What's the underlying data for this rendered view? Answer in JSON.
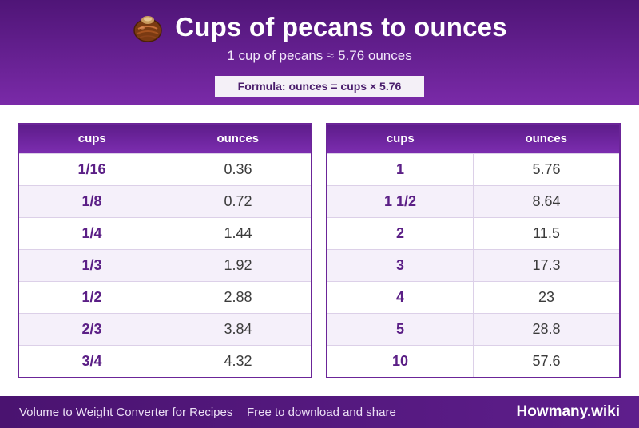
{
  "header": {
    "icon": "pecan-nut-icon",
    "title": "Cups of pecans to ounces",
    "subtitle": "1 cup of pecans ≈ 5.76 ounces",
    "formula": "Formula: ounces = cups × 5.76"
  },
  "tables": {
    "left": {
      "col1": "cups",
      "col2": "ounces",
      "rows": [
        [
          "1/16",
          "0.36"
        ],
        [
          "1/8",
          "0.72"
        ],
        [
          "1/4",
          "1.44"
        ],
        [
          "1/3",
          "1.92"
        ],
        [
          "1/2",
          "2.88"
        ],
        [
          "2/3",
          "3.84"
        ],
        [
          "3/4",
          "4.32"
        ]
      ]
    },
    "right": {
      "col1": "cups",
      "col2": "ounces",
      "rows": [
        [
          "1",
          "5.76"
        ],
        [
          "1 1/2",
          "8.64"
        ],
        [
          "2",
          "11.5"
        ],
        [
          "3",
          "17.3"
        ],
        [
          "4",
          "23"
        ],
        [
          "5",
          "28.8"
        ],
        [
          "10",
          "57.6"
        ]
      ]
    }
  },
  "footer": {
    "left": "Volume to Weight Converter for Recipes",
    "middle": "Free to download and share",
    "brand": "Howmany.wiki"
  },
  "colors": {
    "header_purple": "#5e1e8c",
    "accent_purple": "#6b2598",
    "row_alt": "#f5f0fa"
  }
}
